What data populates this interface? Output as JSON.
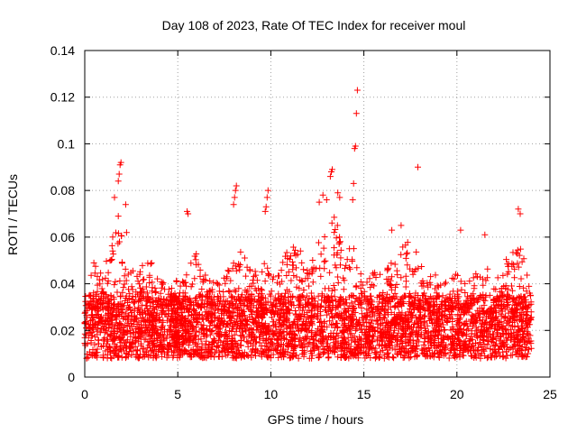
{
  "chart_data": {
    "type": "scatter",
    "title": "Day 108 of 2023, Rate Of TEC Index for receiver moul",
    "xlabel": "GPS time / hours",
    "ylabel": "ROTI / TECUs",
    "xlim": [
      0,
      25
    ],
    "ylim": [
      0,
      0.14
    ],
    "x_ticks": [
      "0",
      "5",
      "10",
      "15",
      "20",
      "25"
    ],
    "y_ticks": [
      "0",
      "0.02",
      "0.04",
      "0.06",
      "0.08",
      "0.1",
      "0.12",
      "0.14"
    ],
    "grid": true,
    "marker": "+",
    "color": "#ff0000",
    "coverage_x": [
      0,
      24
    ],
    "baseline_band": [
      0.008,
      0.035
    ],
    "envelope": [
      [
        0.0,
        0.035
      ],
      [
        0.5,
        0.05
      ],
      [
        1.0,
        0.045
      ],
      [
        1.5,
        0.06
      ],
      [
        1.8,
        0.07
      ],
      [
        2.2,
        0.055
      ],
      [
        2.5,
        0.045
      ],
      [
        3.0,
        0.05
      ],
      [
        3.5,
        0.05
      ],
      [
        4.0,
        0.045
      ],
      [
        4.5,
        0.04
      ],
      [
        5.0,
        0.042
      ],
      [
        5.5,
        0.045
      ],
      [
        6.0,
        0.055
      ],
      [
        6.5,
        0.045
      ],
      [
        7.0,
        0.04
      ],
      [
        7.5,
        0.045
      ],
      [
        8.0,
        0.05
      ],
      [
        8.5,
        0.055
      ],
      [
        9.0,
        0.045
      ],
      [
        9.5,
        0.05
      ],
      [
        10.0,
        0.05
      ],
      [
        10.5,
        0.045
      ],
      [
        11.0,
        0.06
      ],
      [
        11.5,
        0.055
      ],
      [
        12.0,
        0.05
      ],
      [
        12.5,
        0.06
      ],
      [
        13.0,
        0.065
      ],
      [
        13.5,
        0.07
      ],
      [
        14.0,
        0.06
      ],
      [
        14.5,
        0.055
      ],
      [
        15.0,
        0.04
      ],
      [
        15.5,
        0.045
      ],
      [
        16.0,
        0.045
      ],
      [
        16.5,
        0.05
      ],
      [
        17.0,
        0.055
      ],
      [
        17.5,
        0.06
      ],
      [
        18.0,
        0.05
      ],
      [
        18.5,
        0.045
      ],
      [
        19.0,
        0.045
      ],
      [
        19.5,
        0.04
      ],
      [
        20.0,
        0.045
      ],
      [
        20.5,
        0.04
      ],
      [
        21.0,
        0.045
      ],
      [
        21.5,
        0.05
      ],
      [
        22.0,
        0.04
      ],
      [
        22.5,
        0.05
      ],
      [
        23.0,
        0.055
      ],
      [
        23.5,
        0.055
      ],
      [
        24.0,
        0.035
      ]
    ],
    "notable_points": [
      [
        1.6,
        0.077
      ],
      [
        1.8,
        0.069
      ],
      [
        1.8,
        0.084
      ],
      [
        1.85,
        0.087
      ],
      [
        1.9,
        0.091
      ],
      [
        1.95,
        0.092
      ],
      [
        2.2,
        0.074
      ],
      [
        2.25,
        0.062
      ],
      [
        5.5,
        0.071
      ],
      [
        5.55,
        0.07
      ],
      [
        8.0,
        0.074
      ],
      [
        8.05,
        0.077
      ],
      [
        8.1,
        0.08
      ],
      [
        8.15,
        0.082
      ],
      [
        9.7,
        0.071
      ],
      [
        9.75,
        0.073
      ],
      [
        9.8,
        0.077
      ],
      [
        9.85,
        0.08
      ],
      [
        12.6,
        0.075
      ],
      [
        12.8,
        0.078
      ],
      [
        13.0,
        0.076
      ],
      [
        13.2,
        0.086
      ],
      [
        13.25,
        0.088
      ],
      [
        13.3,
        0.089
      ],
      [
        13.6,
        0.079
      ],
      [
        13.7,
        0.077
      ],
      [
        14.4,
        0.076
      ],
      [
        14.45,
        0.083
      ],
      [
        14.5,
        0.098
      ],
      [
        14.55,
        0.099
      ],
      [
        14.6,
        0.113
      ],
      [
        14.65,
        0.123
      ],
      [
        17.9,
        0.09
      ],
      [
        23.3,
        0.072
      ],
      [
        23.4,
        0.07
      ],
      [
        20.2,
        0.063
      ],
      [
        21.5,
        0.061
      ],
      [
        16.5,
        0.063
      ],
      [
        17.0,
        0.065
      ]
    ]
  }
}
